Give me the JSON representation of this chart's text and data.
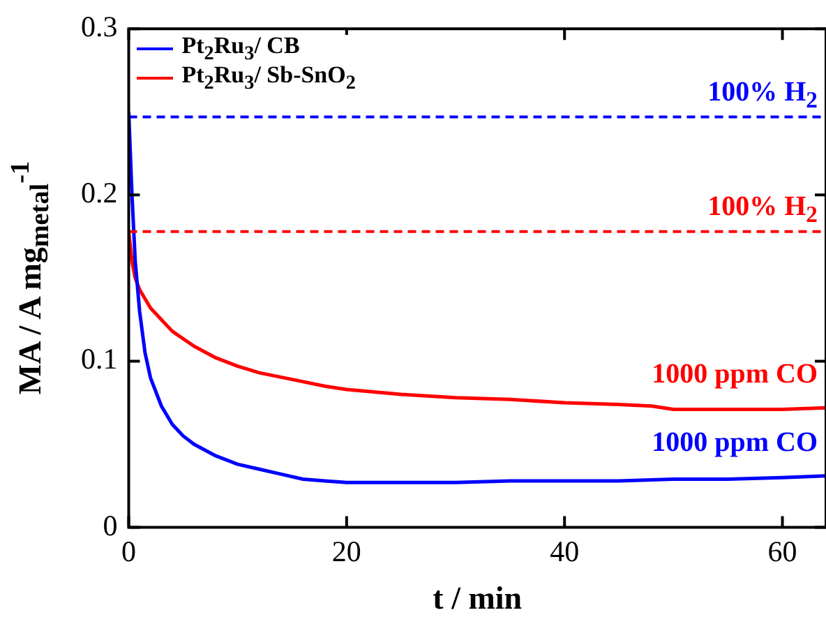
{
  "chart_data": {
    "type": "line",
    "xlabel": "t / min",
    "ylabel": "MA / A mg$_{metal}$$^{-1}$",
    "xlim": [
      0,
      64
    ],
    "ylim": [
      0,
      0.3
    ],
    "xticks": [
      0,
      20,
      40,
      60
    ],
    "yticks": [
      0,
      0.1,
      0.2,
      0.3
    ],
    "grid": false,
    "legend": "top left",
    "marker": "none",
    "line_style": "solid",
    "series": [
      {
        "name": "Pt$_{2}$Ru$_{3}$/ CB",
        "color": "#0000ff",
        "x": [
          0,
          0.3,
          0.6,
          1,
          1.5,
          2,
          3,
          4,
          5,
          6,
          8,
          10,
          12,
          14,
          16,
          18,
          20,
          25,
          30,
          35,
          40,
          45,
          50,
          55,
          60,
          64
        ],
        "values": [
          0.25,
          0.2,
          0.16,
          0.13,
          0.105,
          0.09,
          0.073,
          0.062,
          0.055,
          0.05,
          0.043,
          0.038,
          0.035,
          0.032,
          0.029,
          0.028,
          0.027,
          0.027,
          0.027,
          0.028,
          0.028,
          0.028,
          0.029,
          0.029,
          0.03,
          0.031
        ]
      },
      {
        "name": "Pt$_{2}$Ru$_{3}$/ Sb-SnO$_{2}$",
        "color": "#ff0000",
        "x": [
          0,
          0.3,
          0.6,
          1,
          2,
          3,
          4,
          6,
          8,
          10,
          12,
          15,
          18,
          20,
          25,
          30,
          35,
          40,
          45,
          48,
          50,
          55,
          60,
          64
        ],
        "values": [
          0.178,
          0.16,
          0.15,
          0.143,
          0.132,
          0.125,
          0.118,
          0.109,
          0.102,
          0.097,
          0.093,
          0.089,
          0.085,
          0.083,
          0.08,
          0.078,
          0.077,
          0.075,
          0.074,
          0.073,
          0.071,
          0.071,
          0.071,
          0.072
        ]
      }
    ],
    "ref_lines": [
      {
        "axis": "y",
        "value": 0.247,
        "label": "100% H$_{2}$",
        "color": "#0000ff",
        "line_style": "dashed"
      },
      {
        "axis": "y",
        "value": 0.178,
        "label": "100% H$_{2}$",
        "color": "#ff0000",
        "line_style": "dashed"
      }
    ],
    "annotations": [
      "1000 ppm CO",
      "1000 ppm CO"
    ]
  }
}
